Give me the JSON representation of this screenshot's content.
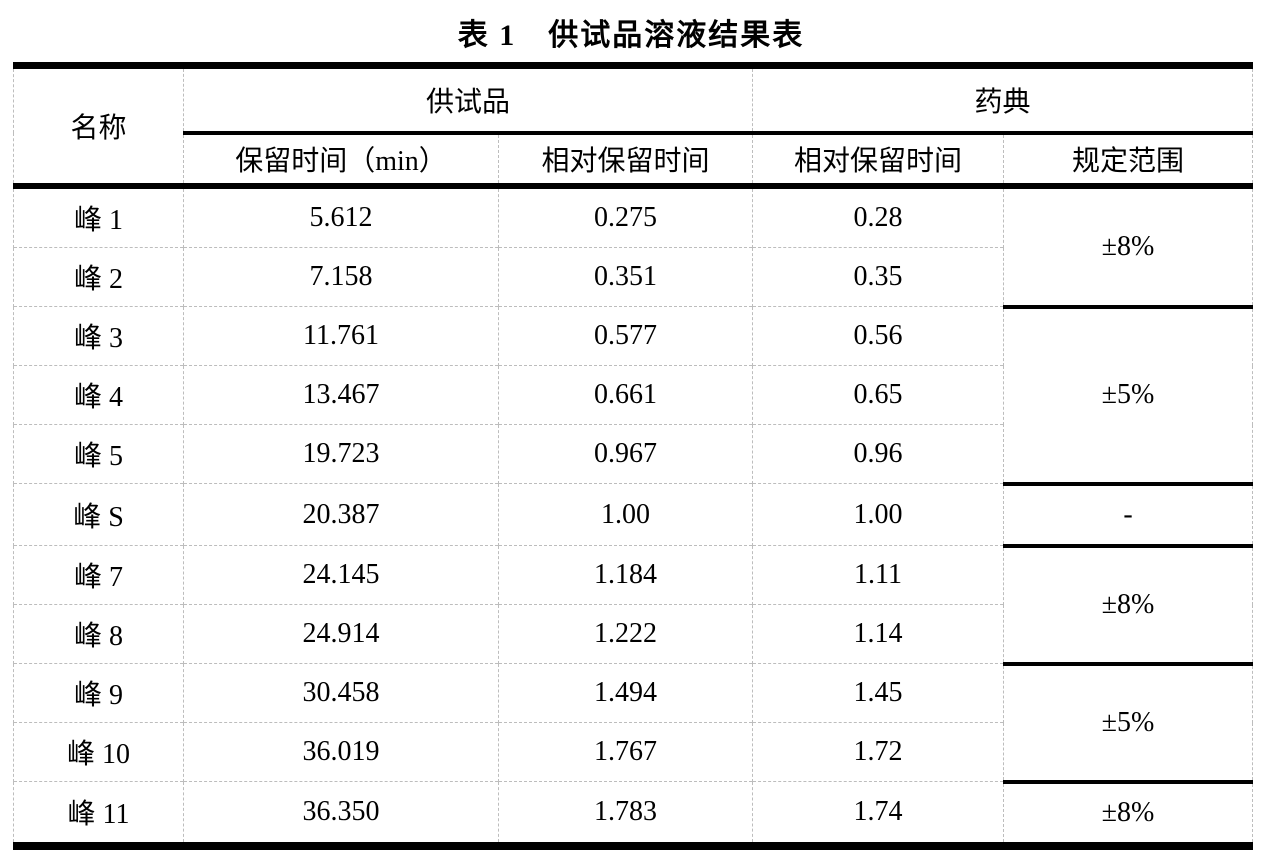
{
  "title": "表 1　供试品溶液结果表",
  "table": {
    "header": {
      "name": "名称",
      "sample_group": "供试品",
      "pharmacopoeia_group": "药典",
      "retention_time": "保留时间（min）",
      "relative_retention": "相对保留时间",
      "pharm_relative_retention": "相对保留时间",
      "specified_range": "规定范围"
    },
    "rows": [
      {
        "name": "峰 1",
        "rt": "5.612",
        "rrt": "0.275",
        "pharm_rrt": "0.28"
      },
      {
        "name": "峰 2",
        "rt": "7.158",
        "rrt": "0.351",
        "pharm_rrt": "0.35"
      },
      {
        "name": "峰 3",
        "rt": "11.761",
        "rrt": "0.577",
        "pharm_rrt": "0.56"
      },
      {
        "name": "峰 4",
        "rt": "13.467",
        "rrt": "0.661",
        "pharm_rrt": "0.65"
      },
      {
        "name": "峰 5",
        "rt": "19.723",
        "rrt": "0.967",
        "pharm_rrt": "0.96"
      },
      {
        "name": "峰 S",
        "rt": "20.387",
        "rrt": "1.00",
        "pharm_rrt": "1.00"
      },
      {
        "name": "峰 7",
        "rt": "24.145",
        "rrt": "1.184",
        "pharm_rrt": "1.11"
      },
      {
        "name": "峰 8",
        "rt": "24.914",
        "rrt": "1.222",
        "pharm_rrt": "1.14"
      },
      {
        "name": "峰 9",
        "rt": "30.458",
        "rrt": "1.494",
        "pharm_rrt": "1.45"
      },
      {
        "name": "峰 10",
        "rt": "36.019",
        "rrt": "1.767",
        "pharm_rrt": "1.72"
      },
      {
        "name": "峰 11",
        "rt": "36.350",
        "rrt": "1.783",
        "pharm_rrt": "1.74"
      }
    ],
    "ranges": [
      "±8%",
      "±5%",
      "-",
      "±8%",
      "±5%",
      "±8%"
    ]
  }
}
